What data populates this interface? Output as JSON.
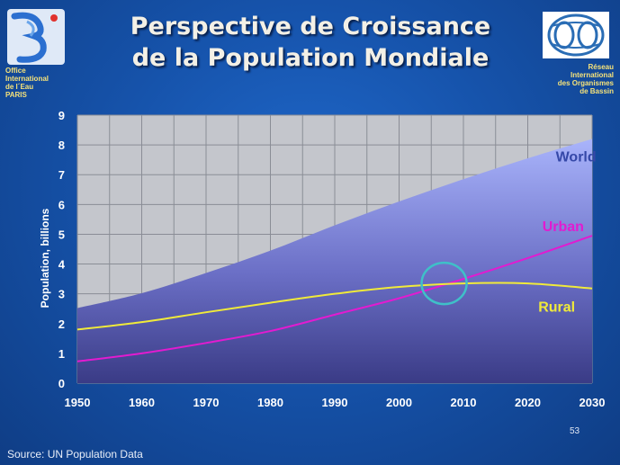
{
  "title_line1": "Perspective de Croissance",
  "title_line2": "de la Population Mondiale",
  "org_left": [
    "Office",
    "International",
    "de l´Eau",
    "PARIS"
  ],
  "org_right": [
    "Réseau",
    "International",
    "des Organismes",
    "de Bassin"
  ],
  "source": "Source: UN Population Data",
  "page_number": "53",
  "chart_data": {
    "type": "area",
    "x": [
      1950,
      1960,
      1970,
      1980,
      1990,
      2000,
      2010,
      2020,
      2030
    ],
    "xlim": [
      1950,
      2030
    ],
    "ylim": [
      0,
      9
    ],
    "xticks": [
      "1950",
      "1960",
      "1970",
      "1980",
      "1990",
      "2000",
      "2010",
      "2020",
      "2030"
    ],
    "yticks": [
      "0",
      "1",
      "2",
      "3",
      "4",
      "5",
      "6",
      "7",
      "8",
      "9"
    ],
    "ylabel": "Population, billions",
    "grid": true,
    "series": [
      {
        "name": "World",
        "type": "area",
        "values": [
          2.52,
          3.02,
          3.7,
          4.45,
          5.3,
          6.1,
          6.85,
          7.55,
          8.2
        ],
        "color": "#9aa6f4"
      },
      {
        "name": "Urban",
        "type": "line",
        "values": [
          0.73,
          1.0,
          1.35,
          1.75,
          2.3,
          2.85,
          3.5,
          4.2,
          4.95
        ],
        "color": "#e21bd0"
      },
      {
        "name": "Rural",
        "type": "line",
        "values": [
          1.8,
          2.05,
          2.38,
          2.7,
          3.0,
          3.23,
          3.35,
          3.35,
          3.18
        ],
        "color": "#f0ea3a"
      }
    ],
    "label_colors": {
      "World": "#3548a8",
      "Urban": "#e21bd0",
      "Rural": "#f0ea3a"
    },
    "annotation": {
      "type": "circle",
      "x": 2007,
      "y": 3.35,
      "color": "#3fc0c8"
    },
    "colors": {
      "plot_bg": "#c4c6cc",
      "grid": "#8a8d96",
      "axis_text": "#ffffff"
    }
  }
}
